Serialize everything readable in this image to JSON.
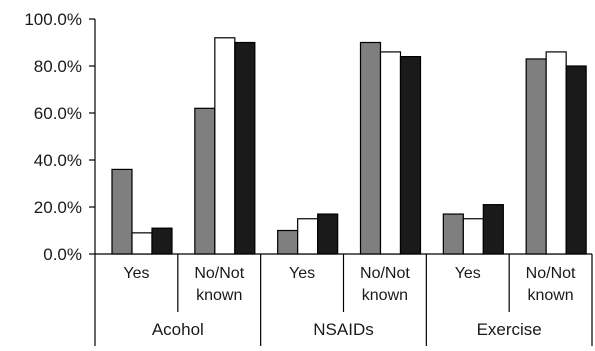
{
  "chart_data": {
    "type": "bar",
    "groups": [
      {
        "label": "Acohol",
        "categories": [
          "Yes",
          "No/Not known"
        ]
      },
      {
        "label": "NSAIDs",
        "categories": [
          "Yes",
          "No/Not known"
        ]
      },
      {
        "label": "Exercise",
        "categories": [
          "Yes",
          "No/Not known"
        ]
      }
    ],
    "series": [
      {
        "color": "#7f7f7f",
        "values": [
          36,
          62,
          10,
          90,
          17,
          83
        ]
      },
      {
        "color": "#ffffff",
        "values": [
          9,
          92,
          15,
          86,
          15,
          86
        ]
      },
      {
        "color": "#1a1a1a",
        "values": [
          11,
          90,
          17,
          84,
          21,
          80
        ]
      }
    ],
    "y_ticks": [
      "0.0%",
      "20.0%",
      "40.0%",
      "60.0%",
      "80.0%",
      "100.0%"
    ],
    "ylim": [
      0,
      100
    ],
    "grid": false,
    "legend": false
  }
}
